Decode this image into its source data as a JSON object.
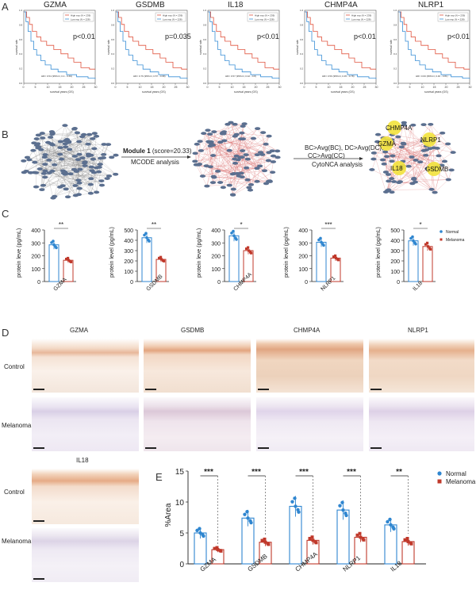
{
  "panels": {
    "a": "A",
    "b": "B",
    "c": "C",
    "d": "D",
    "e": "E"
  },
  "km": {
    "legend_high": "High exp (N = 239)",
    "legend_low": "Low exp (N = 228)",
    "xlabel": "survival years (OS)",
    "ylabel": "survival rate",
    "colors": {
      "high": "#e0543f",
      "low": "#3a8fd6"
    },
    "plots": [
      {
        "title": "GZMA",
        "p": "p<0.01",
        "stats": "HR= 0.54 (95%CI, 0.4 - 0.69)"
      },
      {
        "title": "GSDMB",
        "p": "p=0.035",
        "stats": "HR= 0.76 (95%CI, 0.57 - 0.98)"
      },
      {
        "title": "IL18",
        "p": "p<0.01",
        "stats": "HR= 0.57 (95%CI, 0.42 - 0.8)"
      },
      {
        "title": "CHMP4A",
        "p": "p<0.01",
        "stats": "HR= 0.59 (95%CI, 0.45 - 0.78)"
      },
      {
        "title": "NLRP1",
        "p": "p<0.01",
        "stats": "HR= 0.60 (95%CI, 0.46 - 0.81)"
      }
    ]
  },
  "network": {
    "step1_bold": "Module 1",
    "step1_rest": " (score=20.33)",
    "step1_sub": "MCODE analysis",
    "step2_line1": "BC>Avg(BC), DC>Avg(DC),",
    "step2_line2": "CC>Avg(CC)",
    "step2_sub": "CytoNCA analysis",
    "hubs": [
      "CHMP4A",
      "GZMA",
      "NLRP1",
      "IL18",
      "GSDMB"
    ]
  },
  "chart_data": [
    {
      "type": "bar",
      "categories": [
        "Normal",
        "Melanoma"
      ],
      "xlabel": "GZMA",
      "ylabel": "protein leve (pg/mL)",
      "ylim": [
        0,
        400
      ],
      "yticks": [
        0,
        100,
        200,
        300,
        400
      ],
      "sig": "**",
      "values": [
        285,
        165
      ]
    },
    {
      "type": "bar",
      "categories": [
        "Normal",
        "Melanoma"
      ],
      "xlabel": "GSDMB",
      "ylabel": "protein level (pg/mL)",
      "ylim": [
        0,
        500
      ],
      "yticks": [
        0,
        100,
        200,
        300,
        400,
        500
      ],
      "sig": "**",
      "values": [
        425,
        215
      ]
    },
    {
      "type": "bar",
      "categories": [
        "Normal",
        "Melanoma"
      ],
      "xlabel": "CHMP4A",
      "ylabel": "protein leve (pg/mL)",
      "ylim": [
        0,
        400
      ],
      "yticks": [
        0,
        100,
        200,
        300,
        400
      ],
      "sig": "*",
      "values": [
        355,
        240
      ]
    },
    {
      "type": "bar",
      "categories": [
        "Normal",
        "Melanoma"
      ],
      "xlabel": "NLRP1",
      "ylabel": "protein level (pg/mL)",
      "ylim": [
        0,
        400
      ],
      "yticks": [
        0,
        100,
        200,
        300,
        400
      ],
      "sig": "***",
      "values": [
        305,
        182
      ]
    },
    {
      "type": "bar",
      "categories": [
        "Normal",
        "Melanoma"
      ],
      "xlabel": "IL18",
      "ylabel": "protein level (pg/mL)",
      "ylim": [
        0,
        500
      ],
      "yticks": [
        0,
        100,
        200,
        300,
        400,
        500
      ],
      "sig": "*",
      "values": [
        395,
        340
      ]
    },
    {
      "type": "bar",
      "categories": [
        "GZMA",
        "GSDMB",
        "CHMP4A",
        "NLRP1",
        "IL18"
      ],
      "ylabel": "%Area",
      "ylim": [
        0,
        15
      ],
      "yticks": [
        0,
        5,
        10,
        15
      ],
      "series": [
        {
          "name": "Normal",
          "values": [
            5.0,
            7.4,
            9.3,
            8.7,
            6.3
          ]
        },
        {
          "name": "Melanoma",
          "values": [
            2.3,
            3.5,
            3.8,
            4.3,
            3.6
          ]
        }
      ],
      "sig": [
        "***",
        "***",
        "***",
        "***",
        "**"
      ]
    }
  ],
  "legend": {
    "normal": "Normal",
    "melanoma": "Melanoma"
  },
  "colors": {
    "normal": "#2f86d0",
    "melanoma": "#c0392b"
  },
  "histology": {
    "col_titles": [
      "GZMA",
      "GSDMB",
      "CHMP4A",
      "NLRP1"
    ],
    "il18_title": "IL18",
    "row_control": "Control",
    "row_melanoma": "Melanoma"
  }
}
